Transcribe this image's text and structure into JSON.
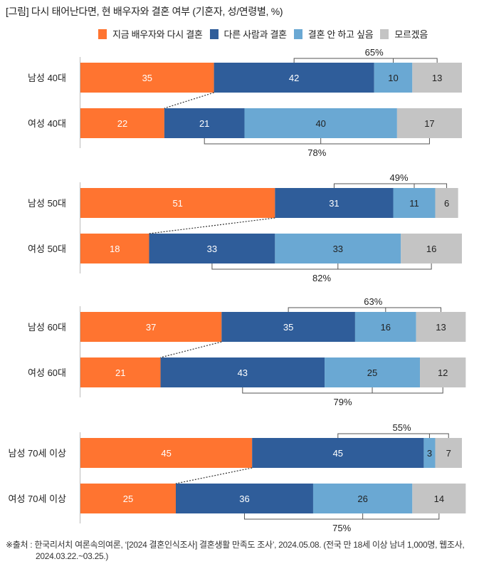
{
  "title": "[그림] 다시 태어난다면, 현 배우자와 결혼 여부 (기혼자, 성/연령별, %)",
  "colors": {
    "same_spouse": "#FF7430",
    "other_person": "#2F5D9A",
    "no_marriage": "#6AA8D3",
    "dont_know": "#C4C4C4"
  },
  "chart_data": {
    "type": "bar",
    "orientation": "horizontal-stacked",
    "title": "[그림] 다시 태어난다면, 현 배우자와 결혼 여부 (기혼자, 성/연령별, %)",
    "legend_position": "top-right",
    "xlim": [
      0,
      100
    ],
    "series": [
      {
        "name": "지금 배우자와 다시 결혼",
        "key": "same_spouse"
      },
      {
        "name": "다른 사람과 결혼",
        "key": "other_person"
      },
      {
        "name": "결혼 안 하고 싶음",
        "key": "no_marriage"
      },
      {
        "name": "모르겠음",
        "key": "dont_know"
      }
    ],
    "groups": [
      {
        "rows": [
          {
            "label": "남성 40대",
            "values": [
              35,
              42,
              10,
              13
            ]
          },
          {
            "label": "여성 40대",
            "values": [
              22,
              21,
              40,
              17
            ]
          }
        ],
        "bracket_top": "65%",
        "bracket_bottom": "78%"
      },
      {
        "rows": [
          {
            "label": "남성 50대",
            "values": [
              51,
              31,
              11,
              6
            ]
          },
          {
            "label": "여성 50대",
            "values": [
              18,
              33,
              33,
              16
            ]
          }
        ],
        "bracket_top": "49%",
        "bracket_bottom": "82%"
      },
      {
        "rows": [
          {
            "label": "남성 60대",
            "values": [
              37,
              35,
              16,
              13
            ]
          },
          {
            "label": "여성 60대",
            "values": [
              21,
              43,
              25,
              12
            ]
          }
        ],
        "bracket_top": "63%",
        "bracket_bottom": "79%"
      },
      {
        "rows": [
          {
            "label": "남성 70세 이상",
            "values": [
              45,
              45,
              3,
              7
            ]
          },
          {
            "label": "여성 70세 이상",
            "values": [
              25,
              36,
              26,
              14
            ]
          }
        ],
        "bracket_top": "55%",
        "bracket_bottom": "75%"
      }
    ]
  },
  "legend": [
    {
      "label": "지금 배우자와 다시 결혼",
      "key": "same_spouse"
    },
    {
      "label": "다른 사람과 결혼",
      "key": "other_person"
    },
    {
      "label": "결혼 안 하고 싶음",
      "key": "no_marriage"
    },
    {
      "label": "모르겠음",
      "key": "dont_know"
    }
  ],
  "footnote": {
    "line1": "※출처 : 한국리서치 여론속의여론, ‘[2024 결혼인식조사] 결혼생활 만족도 조사’, 2024.05.08. (전국 만 18세 이상 남녀 1,000명, 웹조사,",
    "line2": "2024.03.22.~03.25.)"
  }
}
